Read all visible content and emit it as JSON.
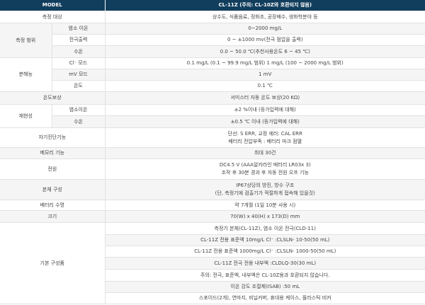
{
  "header": {
    "model_label": "MODEL",
    "model_value": "CL-11Z (주의: CL-10Z와 호환되지 않음)"
  },
  "rows": {
    "target": {
      "label": "측정 대상",
      "value": "상수도, 식품음료, 정화조, 공장배수, 생화학분야 등"
    },
    "range": {
      "label": "측정 범위",
      "items": [
        {
          "label": "염소 이온",
          "value": "0~2000 mg/L"
        },
        {
          "label": "전극출력",
          "value": "0 ~ ±1000 mv(전극 점압을 출력)"
        },
        {
          "label": "수온",
          "value": "0.0 ~ 50.0 ℃(추천사용온도 6 ~ 45 ℃)"
        }
      ]
    },
    "resolution": {
      "label": "분해능",
      "items": [
        {
          "label": "Cl⁻ 모드",
          "value": "0.1 mg/L (0.1 ~ 99.9 mg/L 범위) 1 mg/L (100 ~ 2000 mg/L 범위)"
        },
        {
          "label": "mV 모드",
          "value": "1 mV"
        },
        {
          "label": "온도",
          "value": "0.1 ℃"
        }
      ]
    },
    "temp_comp": {
      "label": "온도보상",
      "value": "서미스터 자동 온도 보상(20 KΩ)"
    },
    "repeatability": {
      "label": "재현성",
      "items": [
        {
          "label": "염소이온",
          "value": "±2 %이내 (등가입력에 대해)"
        },
        {
          "label": "수온",
          "value": "±0.5 ℃ 이내 (등가입력에 대해)"
        }
      ]
    },
    "self_diag": {
      "label": "자기진단기능",
      "lines": [
        "단선: S ERR, 교정 에러: CAL ERR",
        "배터리 전압부족 : 배터리 마크 점멸"
      ]
    },
    "memory": {
      "label": "메모리 기능",
      "value": "최대 30건"
    },
    "power": {
      "label": "전원",
      "lines": [
        "DC4.5 V (AAA알카라인 배터리 LR03x 3)",
        "조작 후 30분 경과 후 자동 전원 오프 기능"
      ]
    },
    "body": {
      "label": "본체 구성",
      "lines": [
        "IP67상당의 방진, 방수 구조",
        "(단, 측정기에 검출기가 적절하게 접속해 있을것)"
      ]
    },
    "battery": {
      "label": "배터리 수명",
      "value": "약 7개월 (1일 10분 사용 시)"
    },
    "size": {
      "label": "크기",
      "value": "70(W) x 40(H) x 173(D) mm"
    },
    "components": {
      "label": "기본 구성품",
      "items": [
        "측정기 본체(CL-11Z), 염소 이온 전극(CLD-11)",
        "CL-11Z 전용 표준액 10mg/L Cl⁻ :CLSLN- 10-50(50 mL)",
        "CL-11Z 전용 표준액 1000mg/L Cl⁻ :CLSLN- 1000-50(50 mL)",
        "CL-11Z 전극 전용 내부액 :CLDLQ-30(30 mL)",
        "주의: 전극, 표준액, 내부액은 CL-10Z용과 호환되지 않습니다.",
        "이온 강도 조절제(ISAB) :50 mL",
        "스포이드(2개), 연마지, 비닐커버, 휴대용 케이스, 플라스틱 비커"
      ]
    }
  },
  "colors": {
    "header_bg": "#123e5d",
    "stripe": "#f5f5f5"
  }
}
